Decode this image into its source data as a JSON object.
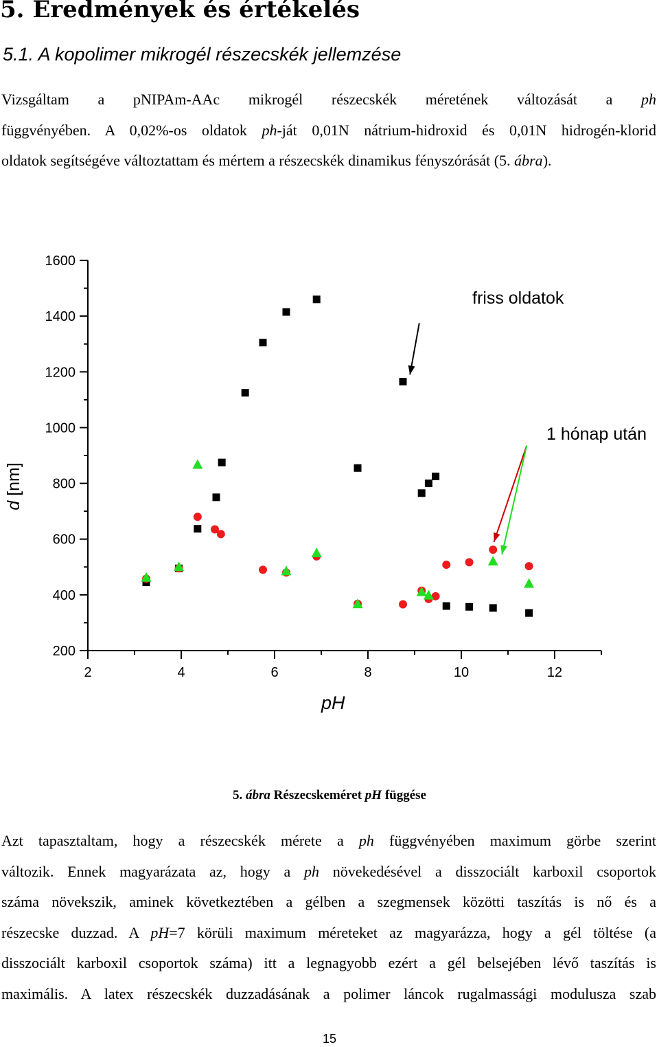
{
  "heading": "5. Eredmények és értékelés",
  "subheading": "5.1. A kopolimer mikrogél részecskék jellemzése",
  "para1": {
    "l1_a": "Vizsgáltam a pNIPAm-AAc mikrogél részecskék méretének változását a ",
    "l1_ph": "ph",
    "l2_a": "függvényében. A 0,02%-os oldatok ",
    "l2_ph": "ph",
    "l2_b": "-ját 0,01N nátrium-hidroxid és 0,01N hidrogén-klorid",
    "l3_a": "oldatok segítségéve változtattam és mértem a részecskék dinamikus fényszórását (5. ",
    "l3_it": "ábra",
    "l3_b": ")."
  },
  "caption": {
    "num": "5. ",
    "it": "ábra",
    "text_a": " Részecskeméret ",
    "ph": "pH",
    "text_b": " függése"
  },
  "para2": {
    "l1_a": "Azt tapasztaltam, hogy a részecskék mérete a ",
    "l1_ph": "ph",
    "l1_b": " függvényében maximum görbe szerint",
    "l2_a": "változik. Ennek magyarázata az, hogy a ",
    "l2_ph": "ph",
    "l2_b": " növekedésével a disszociált karboxil csoportok",
    "l3": "száma növekszik, aminek következtében a gélben a szegmensek közötti taszítás is nő és a",
    "l4_a": "részecske duzzad. A ",
    "l4_ph": "pH",
    "l4_b": "=7 körüli maximum méreteket az magyarázza, hogy a gél töltése (a",
    "l5": "disszociált karboxil csoportok száma) itt a legnagyobb ezért a gél belsejében lévő taszítás is",
    "l6": "maximális. A latex részecskék duzzadásának a polimer láncok rugalmassági modulusza szab"
  },
  "page_number": "15",
  "chart_data": {
    "type": "scatter",
    "xlabel": "pH",
    "ylabel_italic": "d",
    "ylabel_rest": " [nm]",
    "xlim": [
      1.5,
      13.5
    ],
    "ylim": [
      200,
      1600
    ],
    "xticks": [
      2,
      4,
      6,
      8,
      10,
      12
    ],
    "yticks": [
      200,
      400,
      600,
      800,
      1000,
      1200,
      1400,
      1600
    ],
    "annotations": [
      "friss oldatok",
      "1 hónap után"
    ],
    "series": [
      {
        "marker": "square",
        "color": "#000000",
        "points": [
          [
            3.25,
            445
          ],
          [
            3.95,
            495
          ],
          [
            4.35,
            637
          ],
          [
            4.75,
            750
          ],
          [
            4.87,
            875
          ],
          [
            5.37,
            1125
          ],
          [
            5.75,
            1305
          ],
          [
            6.25,
            1415
          ],
          [
            6.9,
            1460
          ],
          [
            7.78,
            855
          ],
          [
            8.75,
            1165
          ],
          [
            9.15,
            765
          ],
          [
            9.3,
            800
          ],
          [
            9.45,
            825
          ],
          [
            9.68,
            360
          ],
          [
            10.17,
            357
          ],
          [
            10.68,
            353
          ],
          [
            11.45,
            335
          ]
        ]
      },
      {
        "marker": "circle",
        "color": "#ee1c1c",
        "points": [
          [
            3.25,
            458
          ],
          [
            3.95,
            495
          ],
          [
            4.35,
            680
          ],
          [
            4.72,
            635
          ],
          [
            4.85,
            618
          ],
          [
            5.75,
            490
          ],
          [
            6.25,
            480
          ],
          [
            6.9,
            538
          ],
          [
            7.78,
            368
          ],
          [
            8.75,
            366
          ],
          [
            9.15,
            415
          ],
          [
            9.3,
            385
          ],
          [
            9.45,
            395
          ],
          [
            9.68,
            508
          ],
          [
            10.17,
            517
          ],
          [
            10.68,
            562
          ],
          [
            11.45,
            503
          ]
        ]
      },
      {
        "marker": "triangle",
        "color": "#22dd22",
        "points": [
          [
            3.25,
            462
          ],
          [
            3.95,
            500
          ],
          [
            4.35,
            867
          ],
          [
            6.25,
            485
          ],
          [
            6.9,
            550
          ],
          [
            7.78,
            367
          ],
          [
            9.15,
            410
          ],
          [
            9.3,
            398
          ],
          [
            10.68,
            520
          ],
          [
            11.45,
            440
          ]
        ]
      }
    ],
    "arrows": [
      {
        "from": [
          9.1,
          1375
        ],
        "to": [
          8.9,
          1190
        ],
        "color": "#000000"
      },
      {
        "from": [
          11.4,
          935
        ],
        "to": [
          10.7,
          590
        ],
        "color": "#cc0000"
      },
      {
        "from": [
          11.4,
          935
        ],
        "to": [
          10.87,
          545
        ],
        "color": "#22dd22"
      }
    ]
  }
}
